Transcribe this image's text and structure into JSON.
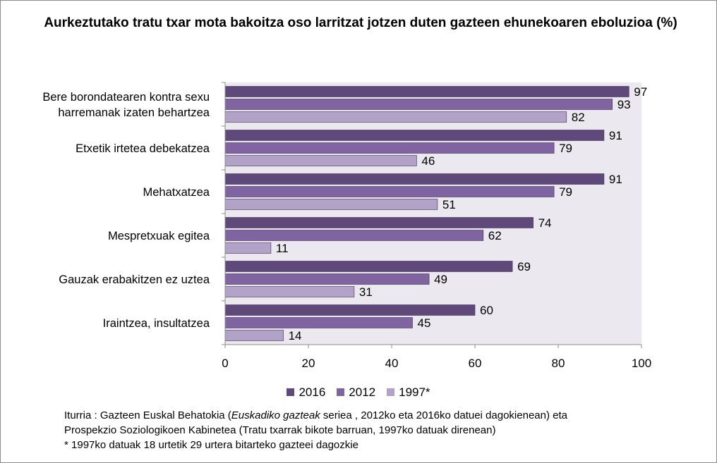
{
  "chart_data": {
    "type": "bar",
    "orientation": "horizontal",
    "title": "Aurkeztutako tratu txar mota bakoitza oso larritzat jotzen duten gazteen ehunekoaren eboluzioa (%)",
    "categories": [
      [
        "Bere borondatearen kontra sexu",
        "harremanak izaten behartzea"
      ],
      [
        "Etxetik irtetea debekatzea"
      ],
      [
        "Mehatxatzea"
      ],
      [
        "Mespretxuak egitea"
      ],
      [
        "Gauzak erabakitzen ez uztea"
      ],
      [
        "Iraintzea, insultatzea"
      ]
    ],
    "series": [
      {
        "name": "2016",
        "color": "#5f497a",
        "values": [
          97,
          91,
          91,
          74,
          69,
          60
        ]
      },
      {
        "name": "2012",
        "color": "#8064a2",
        "values": [
          93,
          79,
          79,
          62,
          49,
          45
        ]
      },
      {
        "name": "1997*",
        "color": "#b3a2c7",
        "values": [
          82,
          46,
          51,
          11,
          31,
          14
        ]
      }
    ],
    "xlim": [
      0,
      100
    ],
    "xticks": [
      0,
      20,
      40,
      60,
      80,
      100
    ],
    "plot_background": "#ebe8f0",
    "grid": false,
    "legend_position": "bottom",
    "data_labels": true
  },
  "source": {
    "prefix": "Iturria : Gazteen Euskal Behatokia  (",
    "italic": "Euskadiko gazteak",
    "suffix": " seriea , 2012ko eta 2016ko datuei dagokienean) eta",
    "line2": "Prospekzio Soziologikoen Kabinetea (Tratu txarrak bikote barruan, 1997ko datuak direnean)",
    "note": "* 1997ko datuak 18 urtetik 29 urtera bitarteko gazteei dagozkie"
  }
}
